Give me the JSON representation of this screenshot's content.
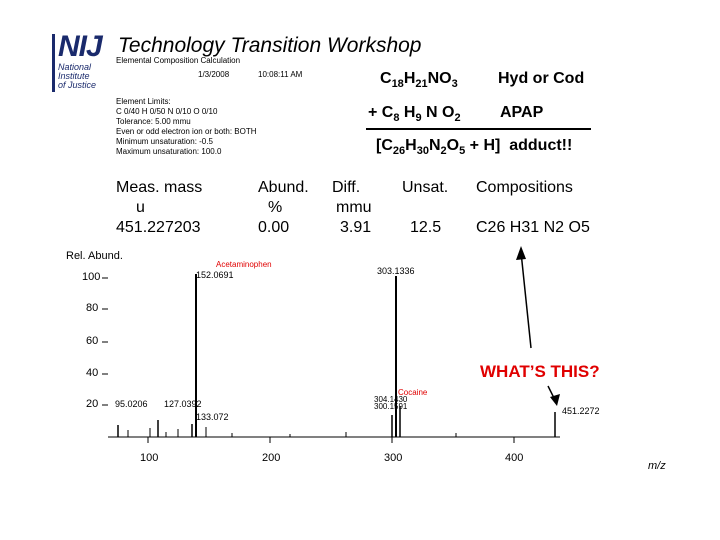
{
  "logo": {
    "letters": "NIJ",
    "line1": "National",
    "line2": "Institute",
    "line3": "of Justice"
  },
  "title": "Technology Transition Workshop",
  "calc": {
    "heading": "Elemental Composition Calculation",
    "date": "1/3/2008",
    "time": "10:08:11 AM",
    "lines": [
      "Element Limits:",
      "C 0/40   H 0/50   N 0/10   O 0/10",
      "Tolerance:   5.00 mmu",
      "Even or odd electron ion or both: BOTH",
      "Minimum unsaturation: -0.5",
      "Maximum unsaturation: 100.0"
    ]
  },
  "formulas": {
    "row1": {
      "formula": "C18H21NO3",
      "label": "Hyd or Cod"
    },
    "row2": {
      "formula": "+ C8 H9 N O2",
      "label": "APAP"
    },
    "row3": {
      "formula": "[C26H30N2O5 + H]  adduct!!"
    }
  },
  "table": {
    "headers": [
      "Meas. mass",
      "Abund.",
      "Diff.",
      "Unsat.",
      "Compositions"
    ],
    "units": [
      "u",
      "%",
      "mmu",
      "",
      ""
    ],
    "row": [
      "451.227203",
      "0.00",
      "3.91",
      "12.5",
      "C26 H31 N2 O5"
    ]
  },
  "spectrum": {
    "ylabel": "Rel. Abund.",
    "xlabel": "m/z",
    "yticks": [
      "100",
      "80",
      "60",
      "40",
      "20"
    ],
    "xticks": [
      "100",
      "200",
      "300",
      "400"
    ],
    "annotations": {
      "acet_name": "Acetaminophen",
      "acet_mass": "152.0691",
      "m303": "303.1336",
      "m95": "95.0206",
      "m127": "127.0392",
      "m133": "133.072",
      "cocaine": "Cocaine",
      "m304": "304.1430",
      "m300": "300.1591",
      "m451": "451.2272"
    }
  },
  "callout": "WHAT’S THIS?",
  "colors": {
    "accent": "#e00000",
    "logo": "#1a2a6c"
  }
}
